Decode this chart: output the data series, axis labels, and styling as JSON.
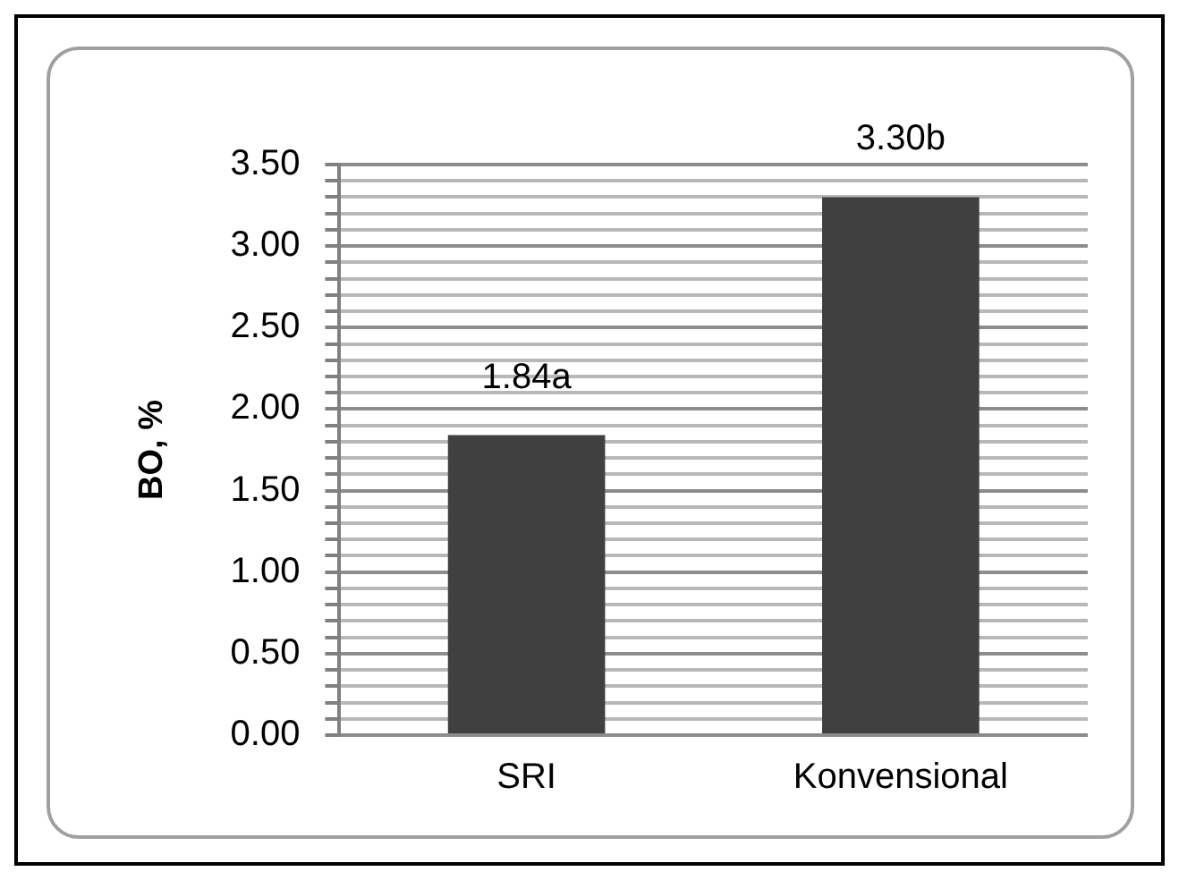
{
  "chart_data": {
    "type": "bar",
    "ylabel": "BO, %",
    "categories": [
      "SRI",
      "Konvensional"
    ],
    "values": [
      1.84,
      3.3
    ],
    "color": "#404040",
    "value_labels": [
      "1.84a",
      "3.30b"
    ],
    "ylim": [
      0,
      3.5
    ],
    "yticks": [
      {
        "value": 0,
        "label": "0.00"
      },
      {
        "value": 0.1,
        "label": null
      },
      {
        "value": 0.2,
        "label": null
      },
      {
        "value": 0.3,
        "label": null
      },
      {
        "value": 0.4,
        "label": null
      },
      {
        "value": 0.5,
        "label": "0.50"
      },
      {
        "value": 0.6,
        "label": null
      },
      {
        "value": 0.7,
        "label": null
      },
      {
        "value": 0.8,
        "label": null
      },
      {
        "value": 0.9,
        "label": null
      },
      {
        "value": 1,
        "label": "1.00"
      },
      {
        "value": 1.1,
        "label": null
      },
      {
        "value": 1.2,
        "label": null
      },
      {
        "value": 1.3,
        "label": null
      },
      {
        "value": 1.4,
        "label": null
      },
      {
        "value": 1.5,
        "label": "1.50"
      },
      {
        "value": 1.6,
        "label": null
      },
      {
        "value": 1.7,
        "label": null
      },
      {
        "value": 1.8,
        "label": null
      },
      {
        "value": 1.9,
        "label": null
      },
      {
        "value": 2,
        "label": "2.00"
      },
      {
        "value": 2.1,
        "label": null
      },
      {
        "value": 2.2,
        "label": null
      },
      {
        "value": 2.3,
        "label": null
      },
      {
        "value": 2.4,
        "label": null
      },
      {
        "value": 2.5,
        "label": "2.50"
      },
      {
        "value": 2.6,
        "label": null
      },
      {
        "value": 2.7,
        "label": null
      },
      {
        "value": 2.8,
        "label": null
      },
      {
        "value": 2.9,
        "label": null
      },
      {
        "value": 3,
        "label": "3.00"
      },
      {
        "value": 3.1,
        "label": null
      },
      {
        "value": 3.2,
        "label": null
      },
      {
        "value": 3.3,
        "label": null
      },
      {
        "value": 3.4,
        "label": null
      },
      {
        "value": 3.5,
        "label": "3.50"
      }
    ],
    "grid": "y"
  }
}
